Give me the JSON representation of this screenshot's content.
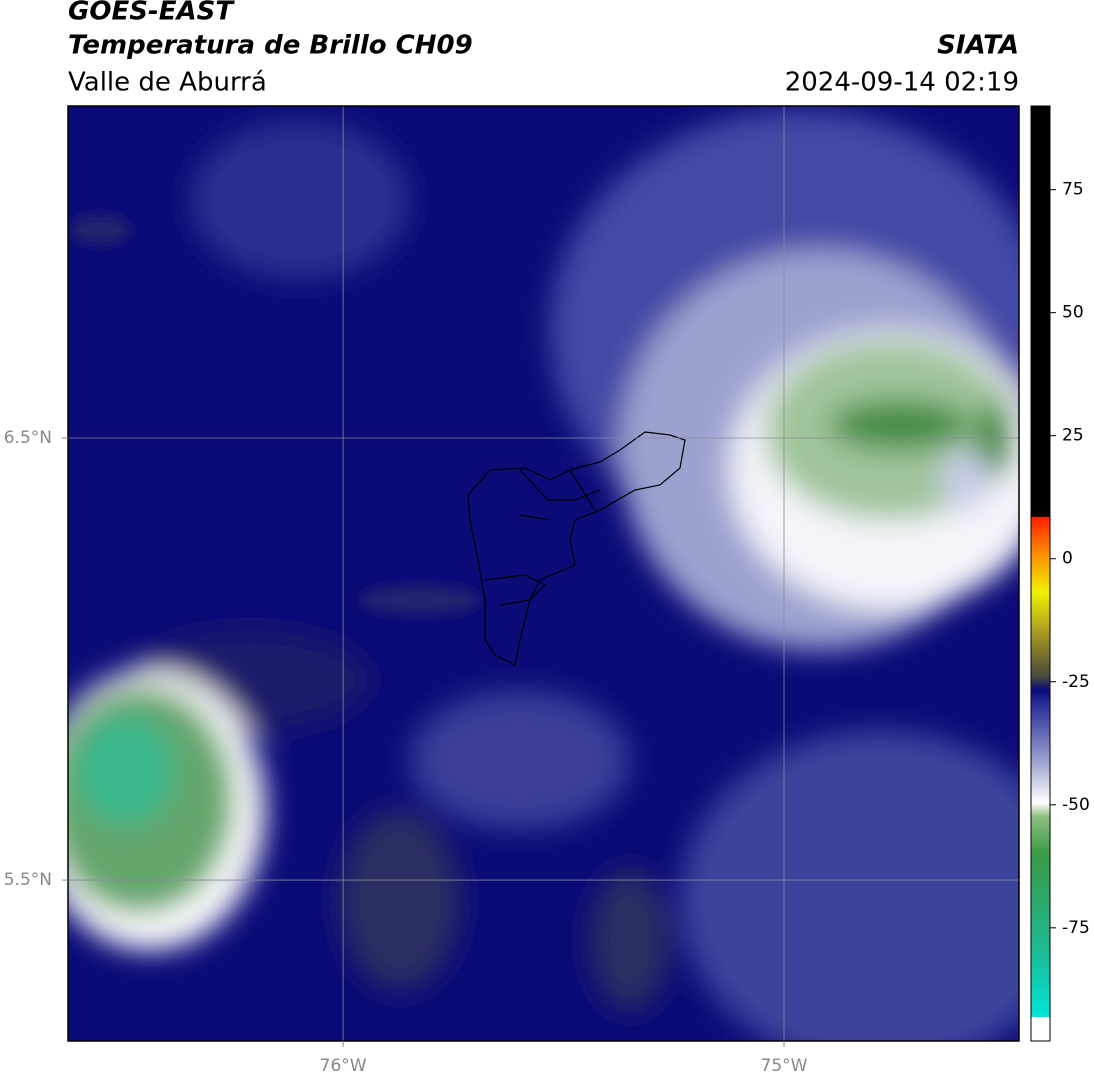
{
  "header": {
    "title": "GOES-EAST",
    "subtitle": "Temperatura de Brillo CH09",
    "region": "Valle de Aburrá",
    "source": "SIATA",
    "datetime": "2024-09-14 02:19"
  },
  "map": {
    "lon_range": [
      -76.624,
      -74.467
    ],
    "lat_range": [
      5.136,
      7.251
    ],
    "lon_ticks": [
      {
        "value": -76,
        "label": "76°W"
      },
      {
        "value": -75,
        "label": "75°W"
      }
    ],
    "lat_ticks": [
      {
        "value": 6.5,
        "label": "6.5°N"
      },
      {
        "value": 5.5,
        "label": "5.5°N"
      }
    ]
  },
  "colorbar": {
    "range": [
      -98,
      92
    ],
    "ticks": [
      75,
      50,
      25,
      0,
      -25,
      -50,
      -75
    ]
  }
}
